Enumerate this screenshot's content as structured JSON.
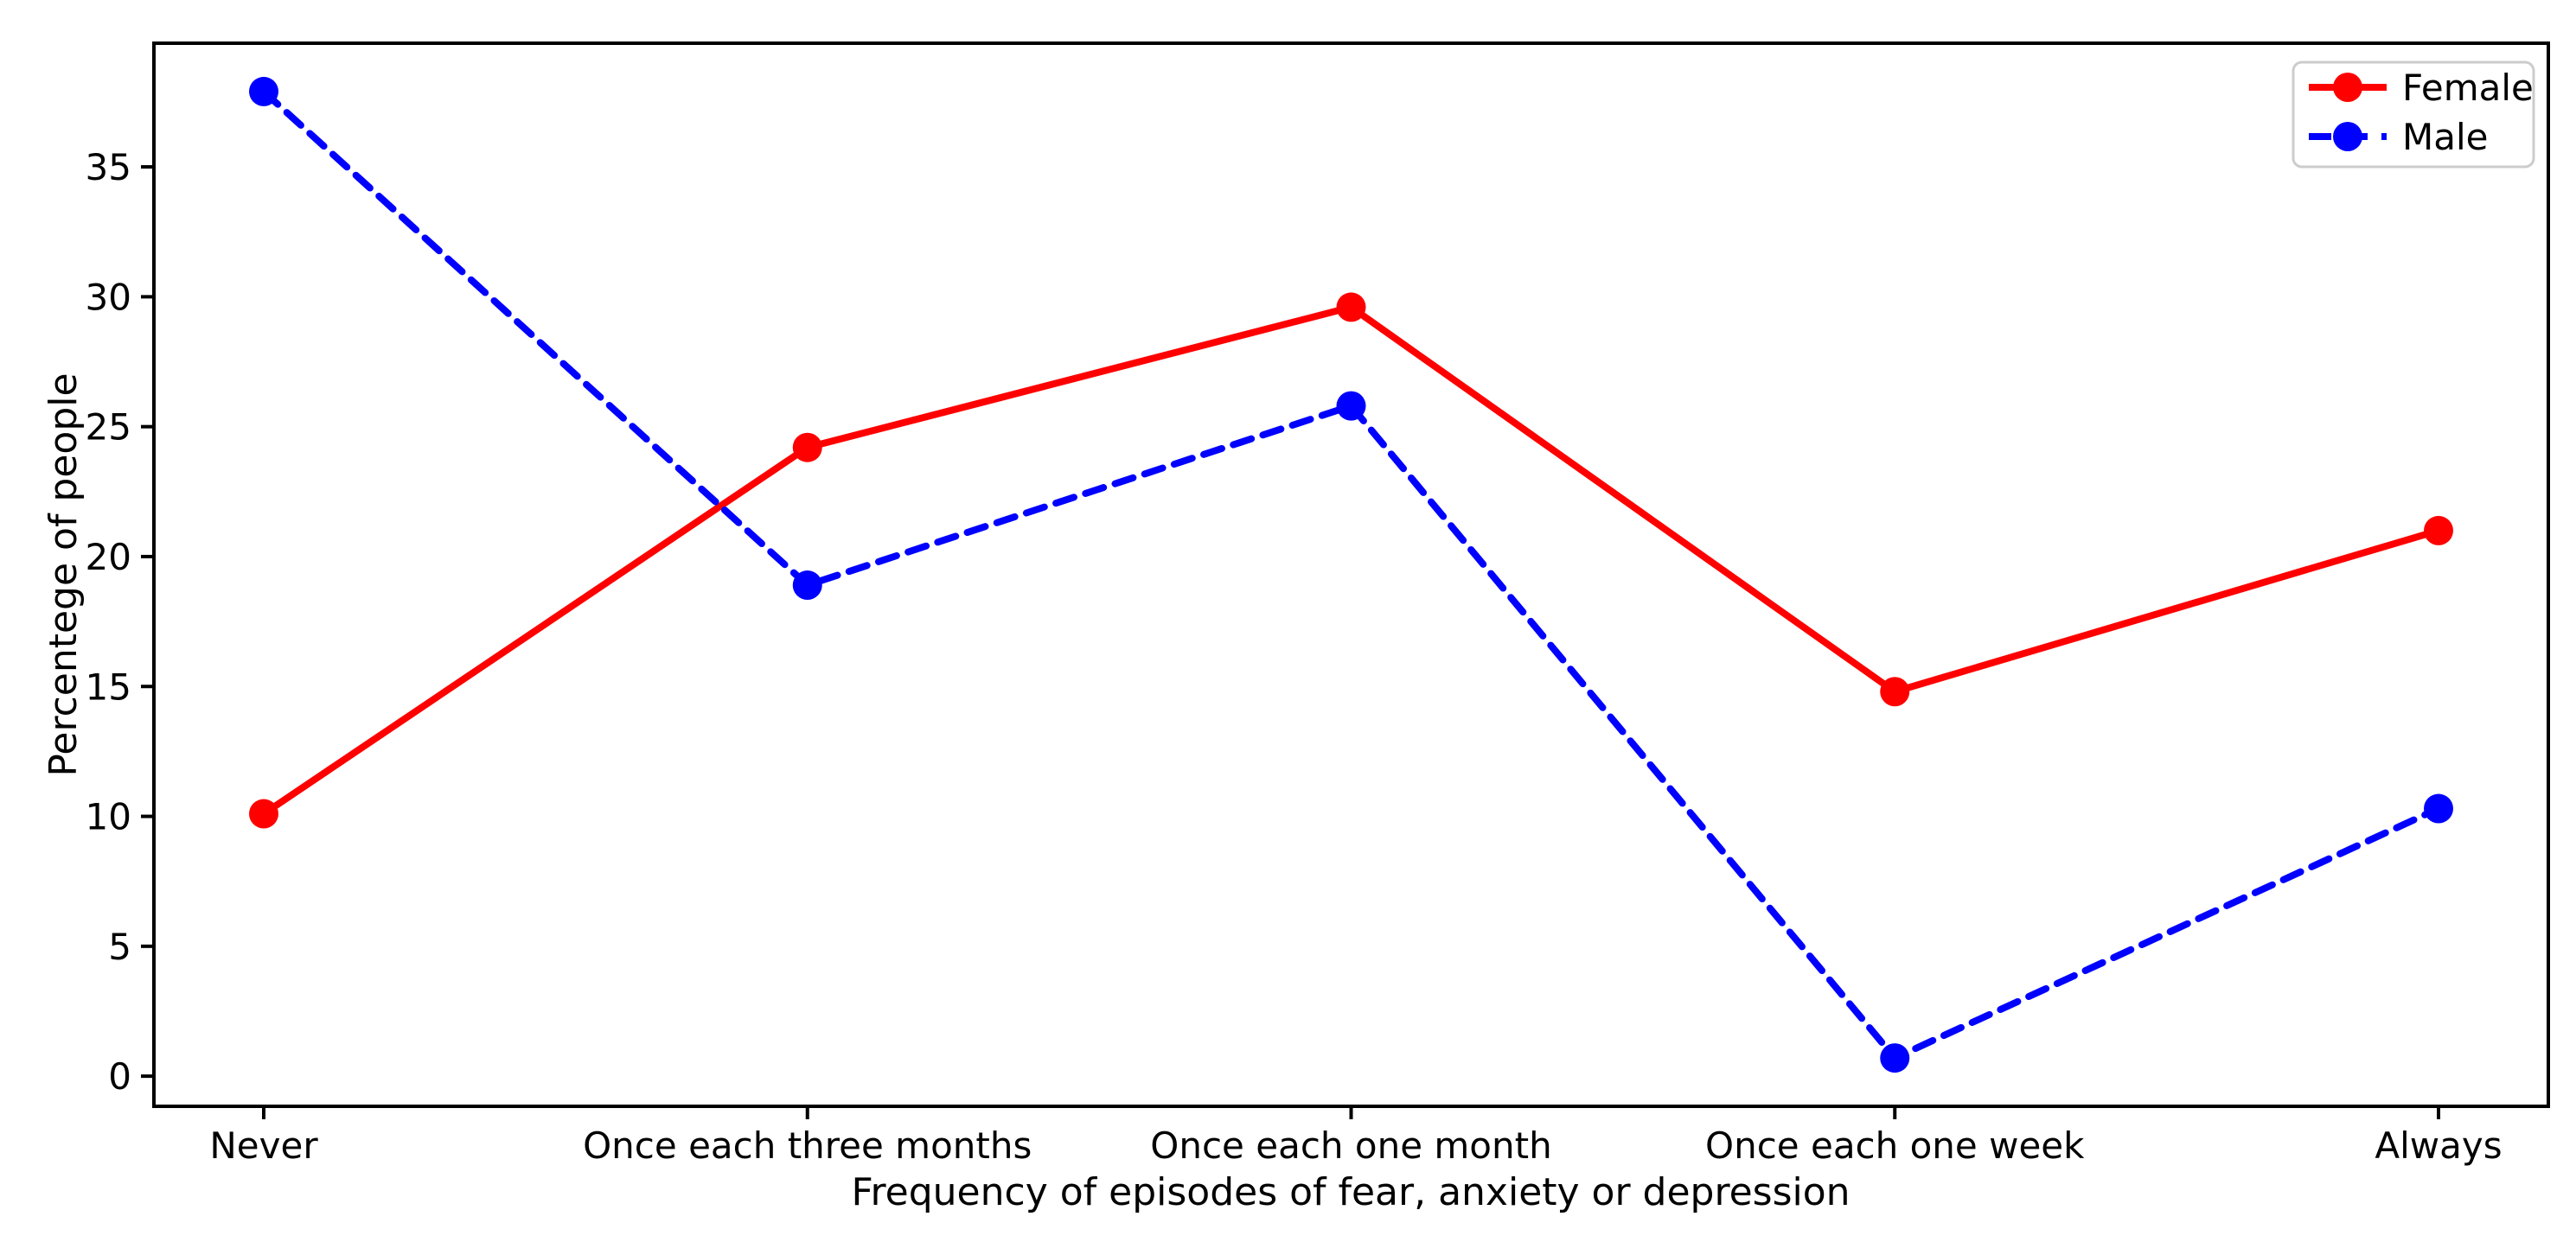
{
  "chart_data": {
    "type": "line",
    "title": "",
    "xlabel": "Frequency of episodes of fear, anxiety or depression",
    "ylabel": "Percentege of people",
    "categories": [
      "Never",
      "Once each three months",
      "Once each one month",
      "Once each one week",
      "Always"
    ],
    "series": [
      {
        "name": "Female",
        "color": "#ff0000",
        "line_style": "solid",
        "marker": "circle",
        "values": [
          10.1,
          24.2,
          29.6,
          14.8,
          21.0
        ]
      },
      {
        "name": "Male",
        "color": "#0000ff",
        "line_style": "dashed",
        "marker": "circle",
        "values": [
          37.9,
          18.9,
          25.8,
          0.7,
          10.3
        ]
      }
    ],
    "yticks": [
      0,
      5,
      10,
      15,
      20,
      25,
      30,
      35
    ],
    "ylim": [
      -1.16,
      39.76
    ],
    "grid": false,
    "legend_position": "upper right",
    "axis_color": "#000000",
    "legend_border_color": "#cccccc",
    "background_color": "#ffffff"
  }
}
